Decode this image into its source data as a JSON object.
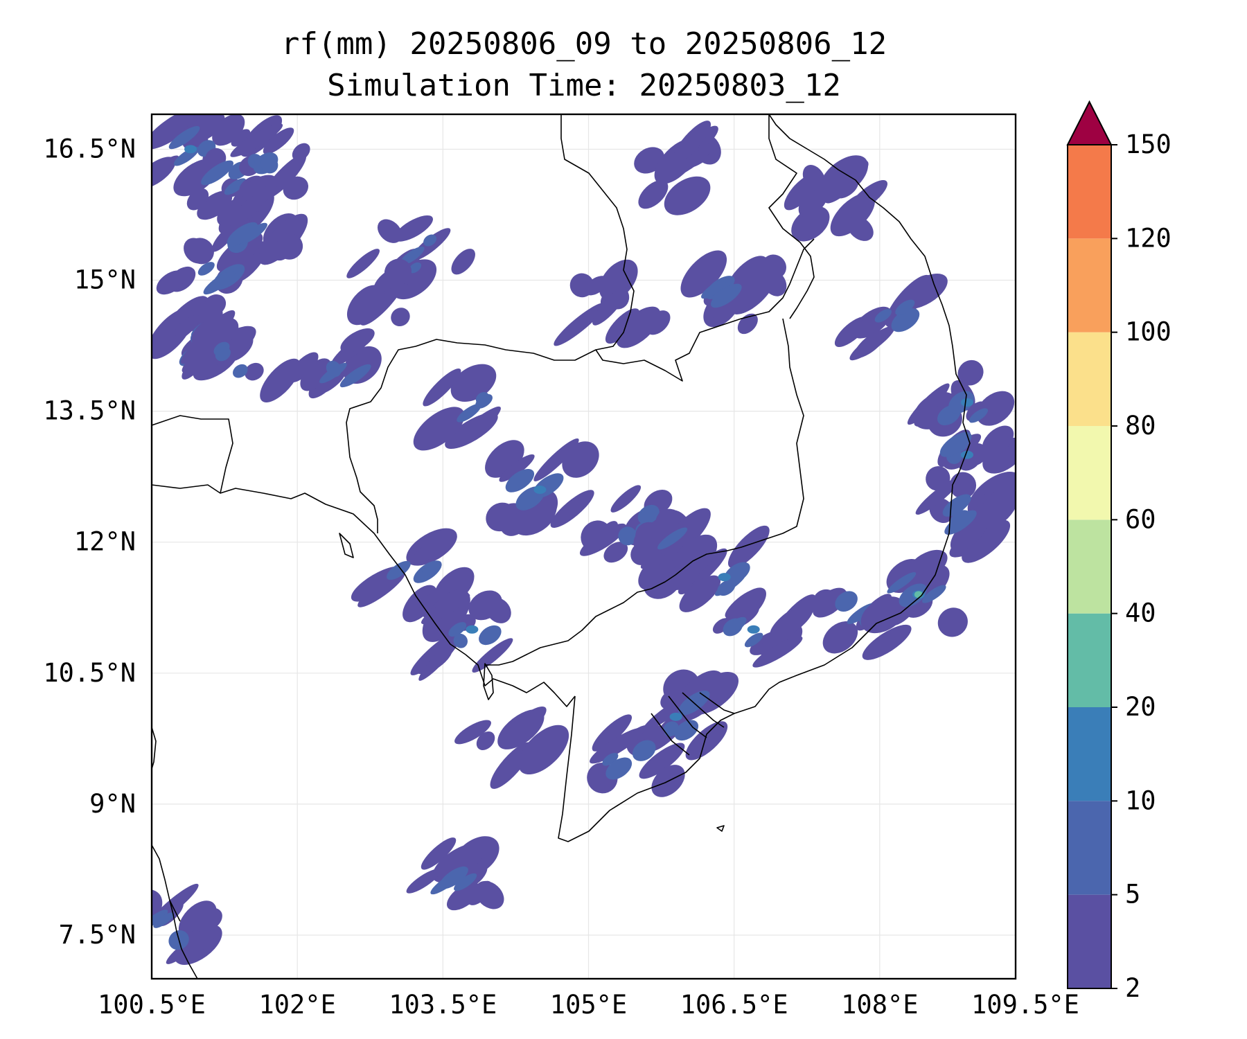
{
  "title": {
    "line1": "rf(mm) 20250806_09 to 20250806_12",
    "line2": "Simulation Time: 20250803_12"
  },
  "map": {
    "lat_ticks": [
      "16.5°N",
      "15°N",
      "13.5°N",
      "12°N",
      "10.5°N",
      "9°N",
      "7.5°N"
    ],
    "lon_ticks": [
      "100.5°E",
      "102°E",
      "103.5°E",
      "105°E",
      "106.5°E",
      "108°E",
      "109.5°E"
    ],
    "lat_values": [
      16.5,
      15,
      13.5,
      12,
      10.5,
      9,
      7.5
    ],
    "lon_values": [
      100.5,
      102,
      103.5,
      105,
      106.5,
      108,
      109.5
    ],
    "extent": {
      "lon_min": 100.5,
      "lon_max": 109.4,
      "lat_min": 7.0,
      "lat_max": 16.9
    },
    "gridlines": true
  },
  "colorbar": {
    "levels": [
      2,
      5,
      10,
      20,
      40,
      60,
      80,
      100,
      120,
      150
    ],
    "labels": [
      "2",
      "5",
      "10",
      "20",
      "40",
      "60",
      "80",
      "100",
      "120",
      "150"
    ],
    "colors": [
      "#5a50a2",
      "#4b66ae",
      "#3a7eb8",
      "#63bca7",
      "#bde3a0",
      "#f2f8ae",
      "#fbe08b",
      "#f9a05c",
      "#f47a4a",
      "#d43d4f"
    ],
    "extend_color": "#9e0142",
    "extend": "max"
  },
  "chart_data": {
    "type": "heatmap",
    "title": "rf(mm) 20250806_09 to 20250806_12",
    "subtitle": "Simulation Time: 20250803_12",
    "variable": "rf(mm)",
    "xlim": [
      100.5,
      109.4
    ],
    "ylim": [
      7.0,
      16.9
    ],
    "xticks": [
      "100.5°E",
      "102°E",
      "103.5°E",
      "105°E",
      "106.5°E",
      "108°E",
      "109.5°E"
    ],
    "yticks": [
      "16.5°N",
      "15°N",
      "13.5°N",
      "12°N",
      "10.5°N",
      "9°N",
      "7.5°N"
    ],
    "colorbar_levels": [
      2,
      5,
      10,
      20,
      40,
      60,
      80,
      100,
      120,
      150
    ],
    "rain_cells": [
      {
        "lon": 100.9,
        "lat": 16.5,
        "class": 10
      },
      {
        "lon": 101.2,
        "lat": 16.1,
        "class": 5
      },
      {
        "lon": 101.7,
        "lat": 16.3,
        "class": 5
      },
      {
        "lon": 101.5,
        "lat": 15.5,
        "class": 5
      },
      {
        "lon": 101.1,
        "lat": 15.0,
        "class": 5
      },
      {
        "lon": 101.0,
        "lat": 14.3,
        "class": 10
      },
      {
        "lon": 101.4,
        "lat": 14.1,
        "class": 5
      },
      {
        "lon": 102.4,
        "lat": 14.0,
        "class": 5
      },
      {
        "lon": 103.3,
        "lat": 15.3,
        "class": 5
      },
      {
        "lon": 102.7,
        "lat": 14.9,
        "class": 2
      },
      {
        "lon": 105.3,
        "lat": 14.7,
        "class": 2
      },
      {
        "lon": 106.5,
        "lat": 14.8,
        "class": 5
      },
      {
        "lon": 105.9,
        "lat": 16.3,
        "class": 2
      },
      {
        "lon": 107.6,
        "lat": 15.9,
        "class": 2
      },
      {
        "lon": 108.1,
        "lat": 14.6,
        "class": 5
      },
      {
        "lon": 103.8,
        "lat": 13.6,
        "class": 5
      },
      {
        "lon": 104.5,
        "lat": 12.6,
        "class": 10
      },
      {
        "lon": 105.5,
        "lat": 12.2,
        "class": 5
      },
      {
        "lon": 106.0,
        "lat": 11.9,
        "class": 10
      },
      {
        "lon": 106.4,
        "lat": 11.6,
        "class": 10
      },
      {
        "lon": 103.2,
        "lat": 11.6,
        "class": 5
      },
      {
        "lon": 103.8,
        "lat": 11.0,
        "class": 10
      },
      {
        "lon": 106.7,
        "lat": 11.0,
        "class": 10
      },
      {
        "lon": 107.8,
        "lat": 11.2,
        "class": 5
      },
      {
        "lon": 108.9,
        "lat": 13.0,
        "class": 10
      },
      {
        "lon": 108.9,
        "lat": 13.6,
        "class": 10
      },
      {
        "lon": 108.9,
        "lat": 12.3,
        "class": 5
      },
      {
        "lon": 108.4,
        "lat": 11.4,
        "class": 40
      },
      {
        "lon": 105.9,
        "lat": 10.0,
        "class": 10
      },
      {
        "lon": 105.4,
        "lat": 9.5,
        "class": 5
      },
      {
        "lon": 104.2,
        "lat": 9.7,
        "class": 2
      },
      {
        "lon": 103.7,
        "lat": 8.1,
        "class": 5
      },
      {
        "lon": 100.7,
        "lat": 7.6,
        "class": 5
      }
    ]
  }
}
